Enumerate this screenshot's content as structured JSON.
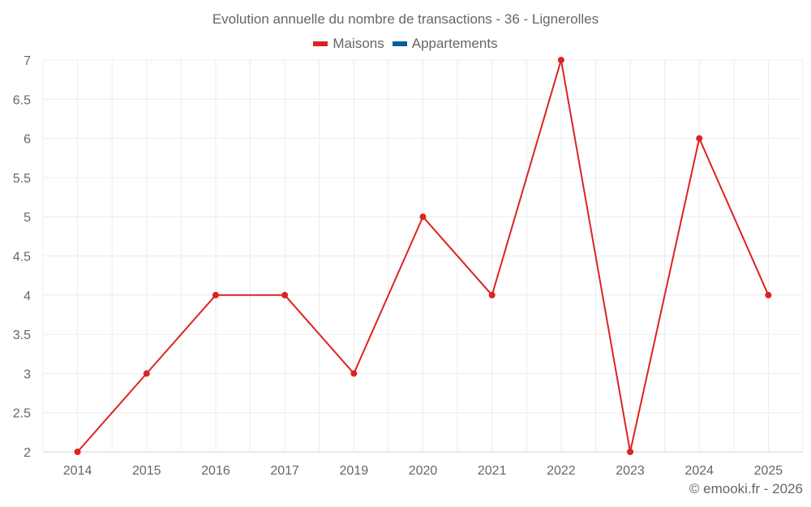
{
  "chart_data": {
    "type": "line",
    "title": "Evolution annuelle du nombre de transactions - 36 - Lignerolles",
    "categories": [
      "2014",
      "2015",
      "2016",
      "2017",
      "2019",
      "2020",
      "2021",
      "2022",
      "2023",
      "2024",
      "2025"
    ],
    "series": [
      {
        "name": "Maisons",
        "color": "#dd2222",
        "values": [
          2,
          3,
          4,
          4,
          3,
          5,
          4,
          7,
          2,
          6,
          4
        ]
      },
      {
        "name": "Appartements",
        "color": "#0b5e99",
        "values": []
      }
    ],
    "yticks": [
      "2",
      "2.5",
      "3",
      "3.5",
      "4",
      "4.5",
      "5",
      "5.5",
      "6",
      "6.5",
      "7"
    ],
    "ylim": [
      2,
      7
    ],
    "xlabel": "",
    "ylabel": "",
    "grid": true,
    "legend_position": "top"
  },
  "credit": "© emooki.fr - 2026"
}
